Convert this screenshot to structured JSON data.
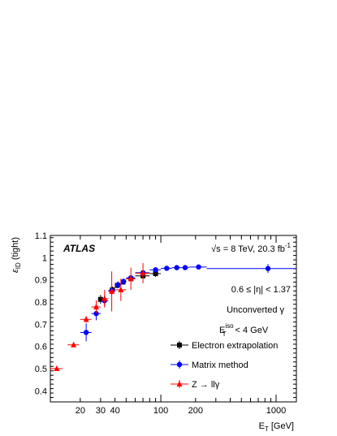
{
  "chart_data": {
    "type": "scatter",
    "x_scale": "log",
    "xlim": [
      11,
      1500
    ],
    "ylim": [
      0.35,
      1.1
    ],
    "x_ticks": [
      {
        "value": 20,
        "label": "20"
      },
      {
        "value": 30,
        "label": "30"
      },
      {
        "value": 40,
        "label": "40"
      },
      {
        "value": 100,
        "label": "100"
      },
      {
        "value": 200,
        "label": "200"
      },
      {
        "value": 1000,
        "label": "1000"
      }
    ],
    "y_ticks": [
      {
        "value": 0.4,
        "label": "0.4"
      },
      {
        "value": 0.5,
        "label": "0.5"
      },
      {
        "value": 0.6,
        "label": "0.6"
      },
      {
        "value": 0.7,
        "label": "0.7"
      },
      {
        "value": 0.8,
        "label": "0.8"
      },
      {
        "value": 0.9,
        "label": "0.9"
      },
      {
        "value": 1.0,
        "label": "1"
      },
      {
        "value": 1.1,
        "label": "1.1"
      }
    ],
    "xlabel": {
      "main": "E",
      "sub": "T",
      "unit": " [GeV]"
    },
    "ylabel": {
      "main": "ε",
      "sub": "ID",
      "suffix": " (tight)"
    },
    "experiment_label": "ATLAS",
    "energy_label": {
      "text": "√s = 8 TeV, 20.3 fb",
      "sup": "-1"
    },
    "annotations": [
      {
        "text": "0.6 ≤ |η| < 1.37"
      },
      {
        "text": "Unconverted γ"
      },
      {
        "main": "E",
        "sup": "iso",
        "sub": "T",
        "rest": " < 4 GeV"
      }
    ],
    "legend_position": "right",
    "series": [
      {
        "name": "Electron extrapolation",
        "marker": "square",
        "color": "#000000",
        "points": [
          {
            "x": 30,
            "xlo": 28.5,
            "xhi": 31.5,
            "y": 0.812,
            "err": 0.02
          },
          {
            "x": 38,
            "xlo": 36,
            "xhi": 40,
            "y": 0.855,
            "err": 0.015
          },
          {
            "x": 42,
            "xlo": 40,
            "xhi": 44,
            "y": 0.875,
            "err": 0.012
          },
          {
            "x": 47,
            "xlo": 45,
            "xhi": 50,
            "y": 0.89,
            "err": 0.01
          },
          {
            "x": 55,
            "xlo": 50,
            "xhi": 60,
            "y": 0.905,
            "err": 0.01
          },
          {
            "x": 70,
            "xlo": 60,
            "xhi": 80,
            "y": 0.918,
            "err": 0.012
          },
          {
            "x": 90,
            "xlo": 80,
            "xhi": 100,
            "y": 0.928,
            "err": 0.015
          }
        ]
      },
      {
        "name": "Matrix method",
        "marker": "circle",
        "color": "#0000ff",
        "points": [
          {
            "x": 22.5,
            "xlo": 20,
            "xhi": 25,
            "y": 0.663,
            "err": 0.04
          },
          {
            "x": 27.5,
            "xlo": 25,
            "xhi": 30,
            "y": 0.748,
            "err": 0.03
          },
          {
            "x": 32.5,
            "xlo": 30,
            "xhi": 35,
            "y": 0.806,
            "err": 0.025
          },
          {
            "x": 37.5,
            "xlo": 35,
            "xhi": 40,
            "y": 0.851,
            "err": 0.02
          },
          {
            "x": 42.5,
            "xlo": 40,
            "xhi": 45,
            "y": 0.878,
            "err": 0.015
          },
          {
            "x": 47.5,
            "xlo": 45,
            "xhi": 50,
            "y": 0.893,
            "err": 0.012
          },
          {
            "x": 55,
            "xlo": 50,
            "xhi": 60,
            "y": 0.909,
            "err": 0.01
          },
          {
            "x": 70,
            "xlo": 60,
            "xhi": 80,
            "y": 0.932,
            "err": 0.01
          },
          {
            "x": 90,
            "xlo": 80,
            "xhi": 100,
            "y": 0.945,
            "err": 0.008
          },
          {
            "x": 112.5,
            "xlo": 100,
            "xhi": 125,
            "y": 0.952,
            "err": 0.006
          },
          {
            "x": 137.5,
            "xlo": 125,
            "xhi": 150,
            "y": 0.955,
            "err": 0.006
          },
          {
            "x": 162.5,
            "xlo": 150,
            "xhi": 175,
            "y": 0.955,
            "err": 0.007
          },
          {
            "x": 212.5,
            "xlo": 175,
            "xhi": 250,
            "y": 0.958,
            "err": 0.007
          },
          {
            "x": 850,
            "xlo": 250,
            "xhi": 1500,
            "y": 0.951,
            "err": 0.02
          }
        ]
      },
      {
        "name": "Z → llγ",
        "marker": "triangle",
        "color": "#ff0000",
        "points": [
          {
            "x": 12.5,
            "xlo": 11,
            "xhi": 14,
            "y": 0.5,
            "err": 0.004
          },
          {
            "x": 17.5,
            "xlo": 15.5,
            "xhi": 19.5,
            "y": 0.607,
            "err": 0.008
          },
          {
            "x": 22.5,
            "xlo": 20,
            "xhi": 25,
            "y": 0.722,
            "err": 0.015
          },
          {
            "x": 27.5,
            "xlo": 25,
            "xhi": 30,
            "y": 0.778,
            "err": 0.03
          },
          {
            "x": 32.5,
            "xlo": 30,
            "xhi": 35,
            "y": 0.815,
            "err": 0.04
          },
          {
            "x": 37.5,
            "xlo": 35,
            "xhi": 40,
            "y": 0.848,
            "err": 0.09
          },
          {
            "x": 45,
            "xlo": 40,
            "xhi": 50,
            "y": 0.855,
            "err": 0.05
          },
          {
            "x": 55,
            "xlo": 50,
            "xhi": 60,
            "y": 0.905,
            "err": 0.05
          },
          {
            "x": 70,
            "xlo": 60,
            "xhi": 80,
            "y": 0.93,
            "err": 0.045
          }
        ]
      }
    ]
  }
}
